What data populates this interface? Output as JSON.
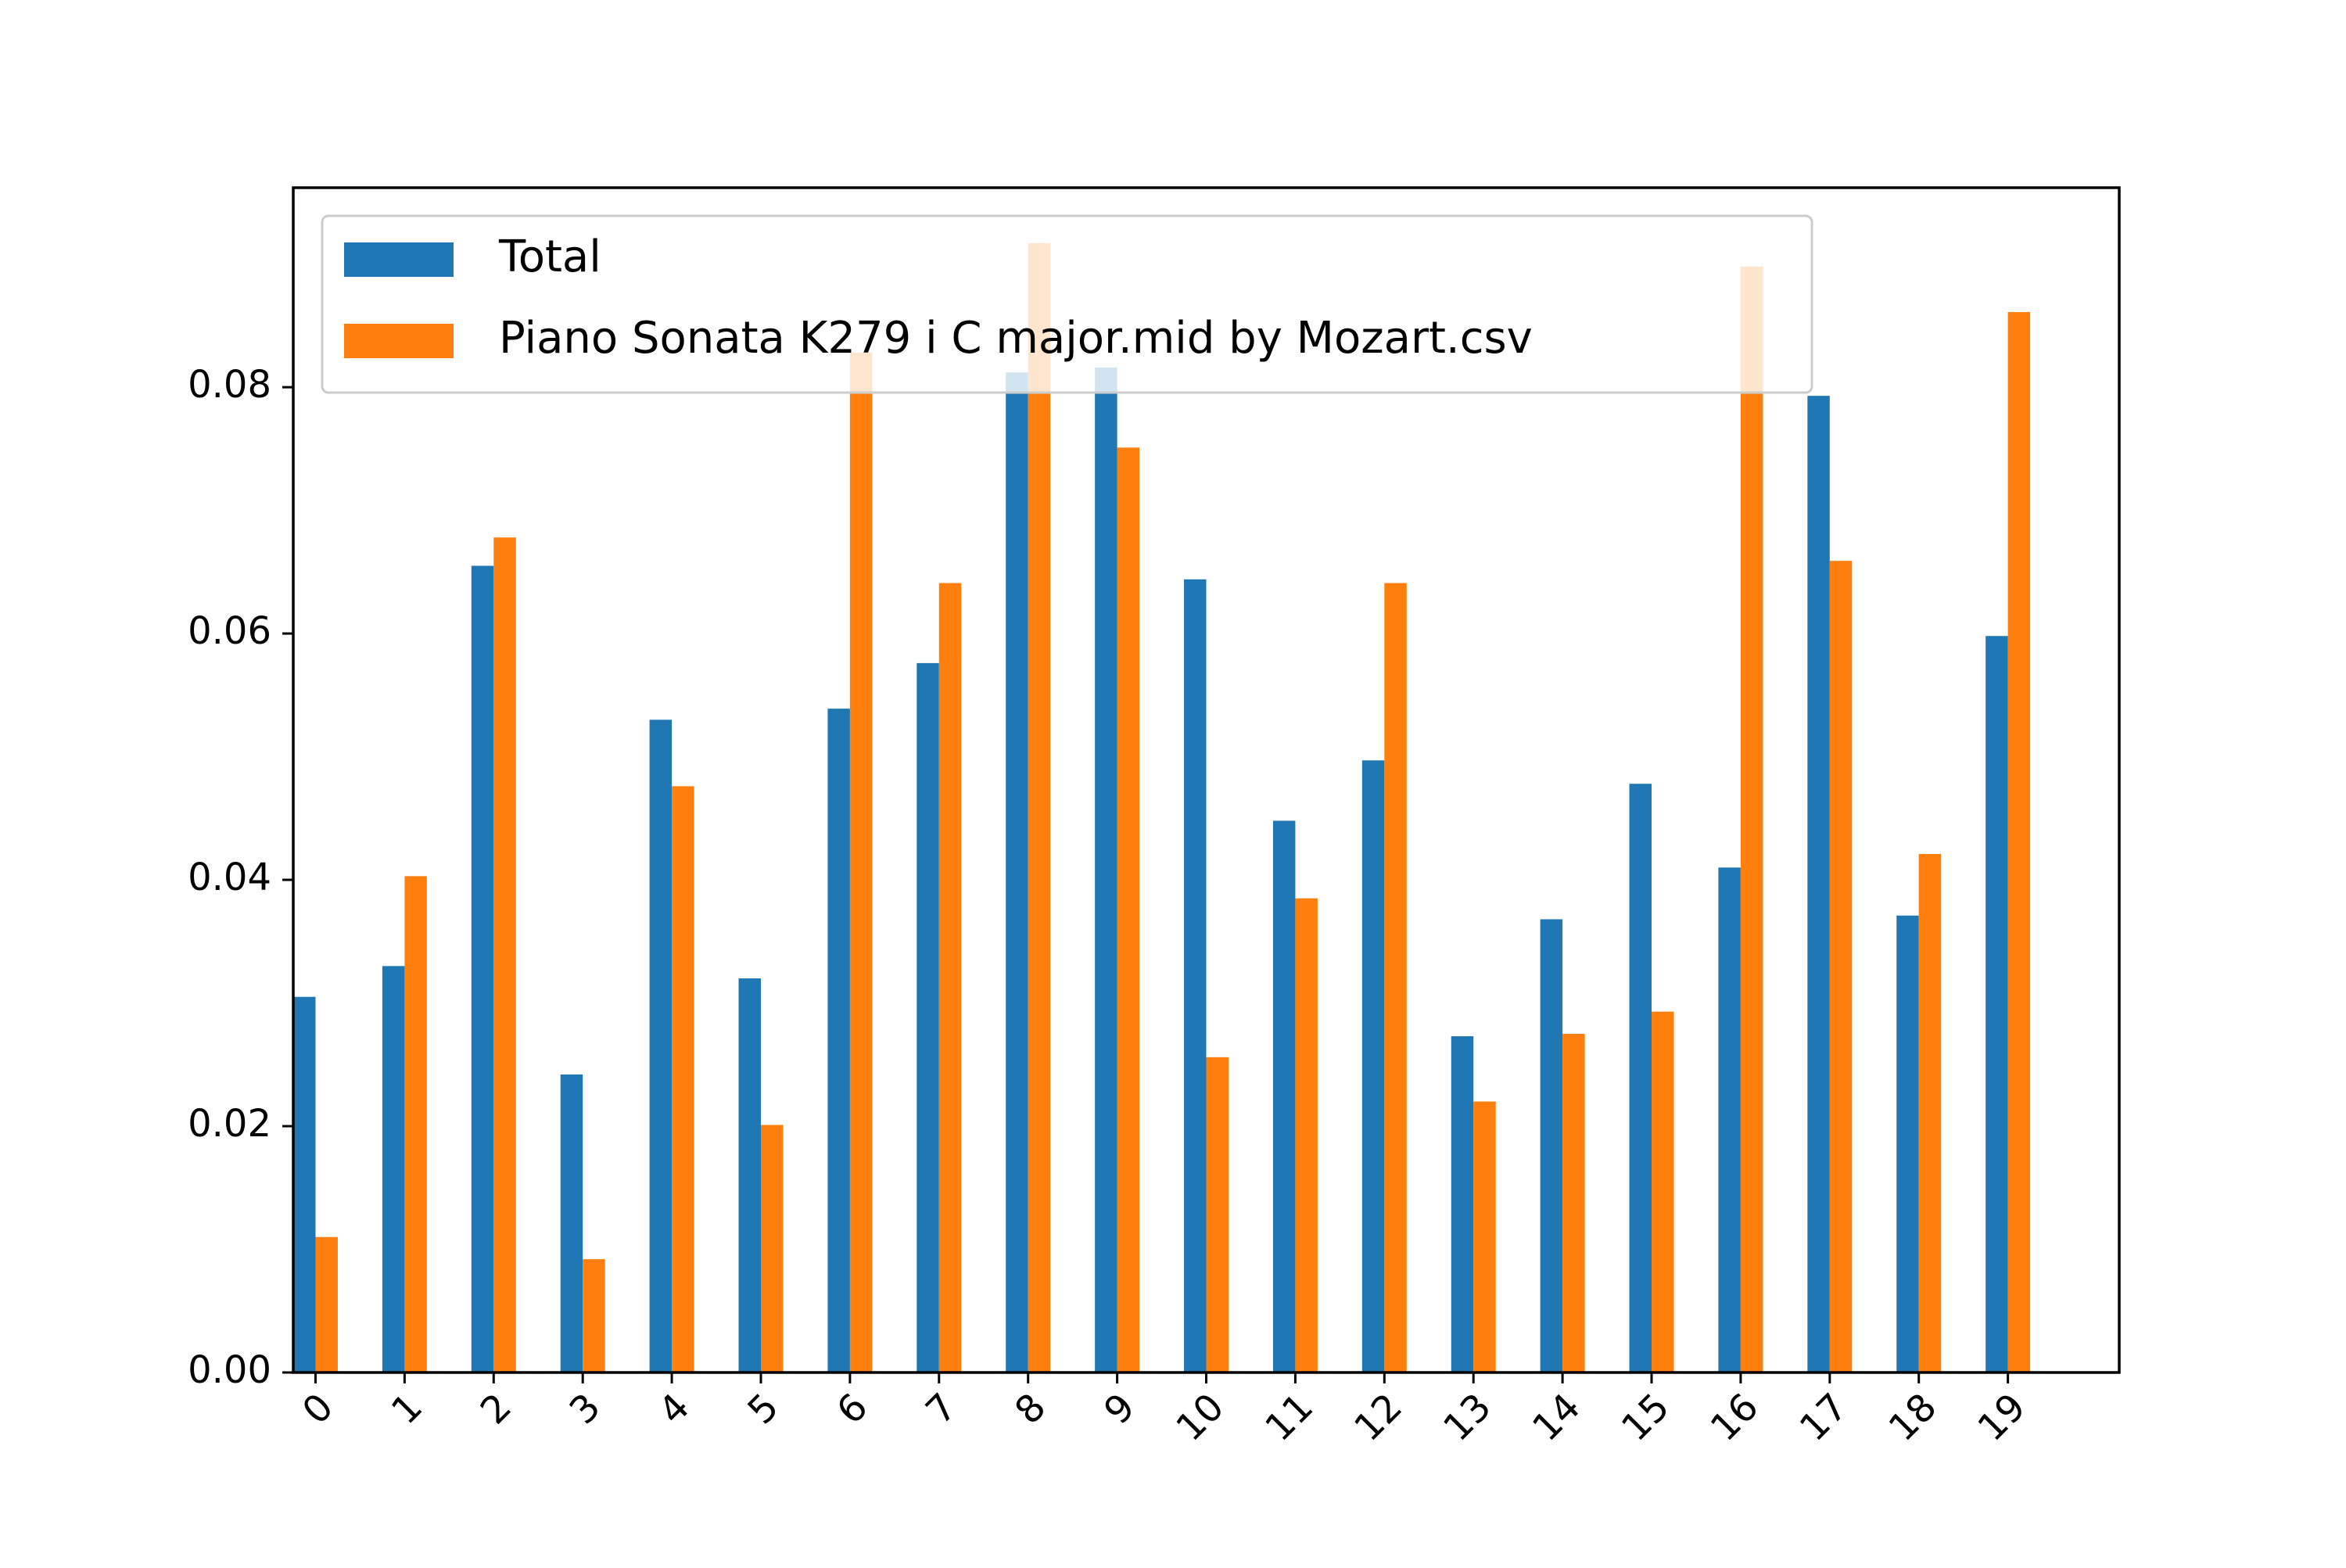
{
  "chart_data": {
    "type": "bar",
    "categories": [
      "0",
      "1",
      "2",
      "3",
      "4",
      "5",
      "6",
      "7",
      "8",
      "9",
      "10",
      "11",
      "12",
      "13",
      "14",
      "15",
      "16",
      "17",
      "18",
      "19"
    ],
    "series": [
      {
        "name": "Total",
        "color": "#1f77b4",
        "values": [
          0.0305,
          0.033,
          0.0655,
          0.0242,
          0.053,
          0.032,
          0.0539,
          0.0576,
          0.0812,
          0.0816,
          0.0644,
          0.0448,
          0.0497,
          0.0273,
          0.0368,
          0.0478,
          0.041,
          0.0793,
          0.0371,
          0.0598
        ]
      },
      {
        "name": "Piano Sonata K279 i C major.mid by Mozart.csv",
        "color": "#ff7f0e",
        "values": [
          0.011,
          0.0403,
          0.0678,
          0.0092,
          0.0476,
          0.0201,
          0.0828,
          0.0641,
          0.0917,
          0.0751,
          0.0256,
          0.0385,
          0.0641,
          0.022,
          0.0275,
          0.0293,
          0.0898,
          0.0659,
          0.0421,
          0.0861
        ]
      }
    ],
    "ylim": [
      0,
      0.0962
    ],
    "yticks": [
      0.0,
      0.02,
      0.04,
      0.06,
      0.08
    ],
    "ytick_labels": [
      "0.00",
      "0.02",
      "0.04",
      "0.06",
      "0.08"
    ],
    "xtick_rotation_deg": 45,
    "legend_position": "top-left",
    "grid": false
  }
}
